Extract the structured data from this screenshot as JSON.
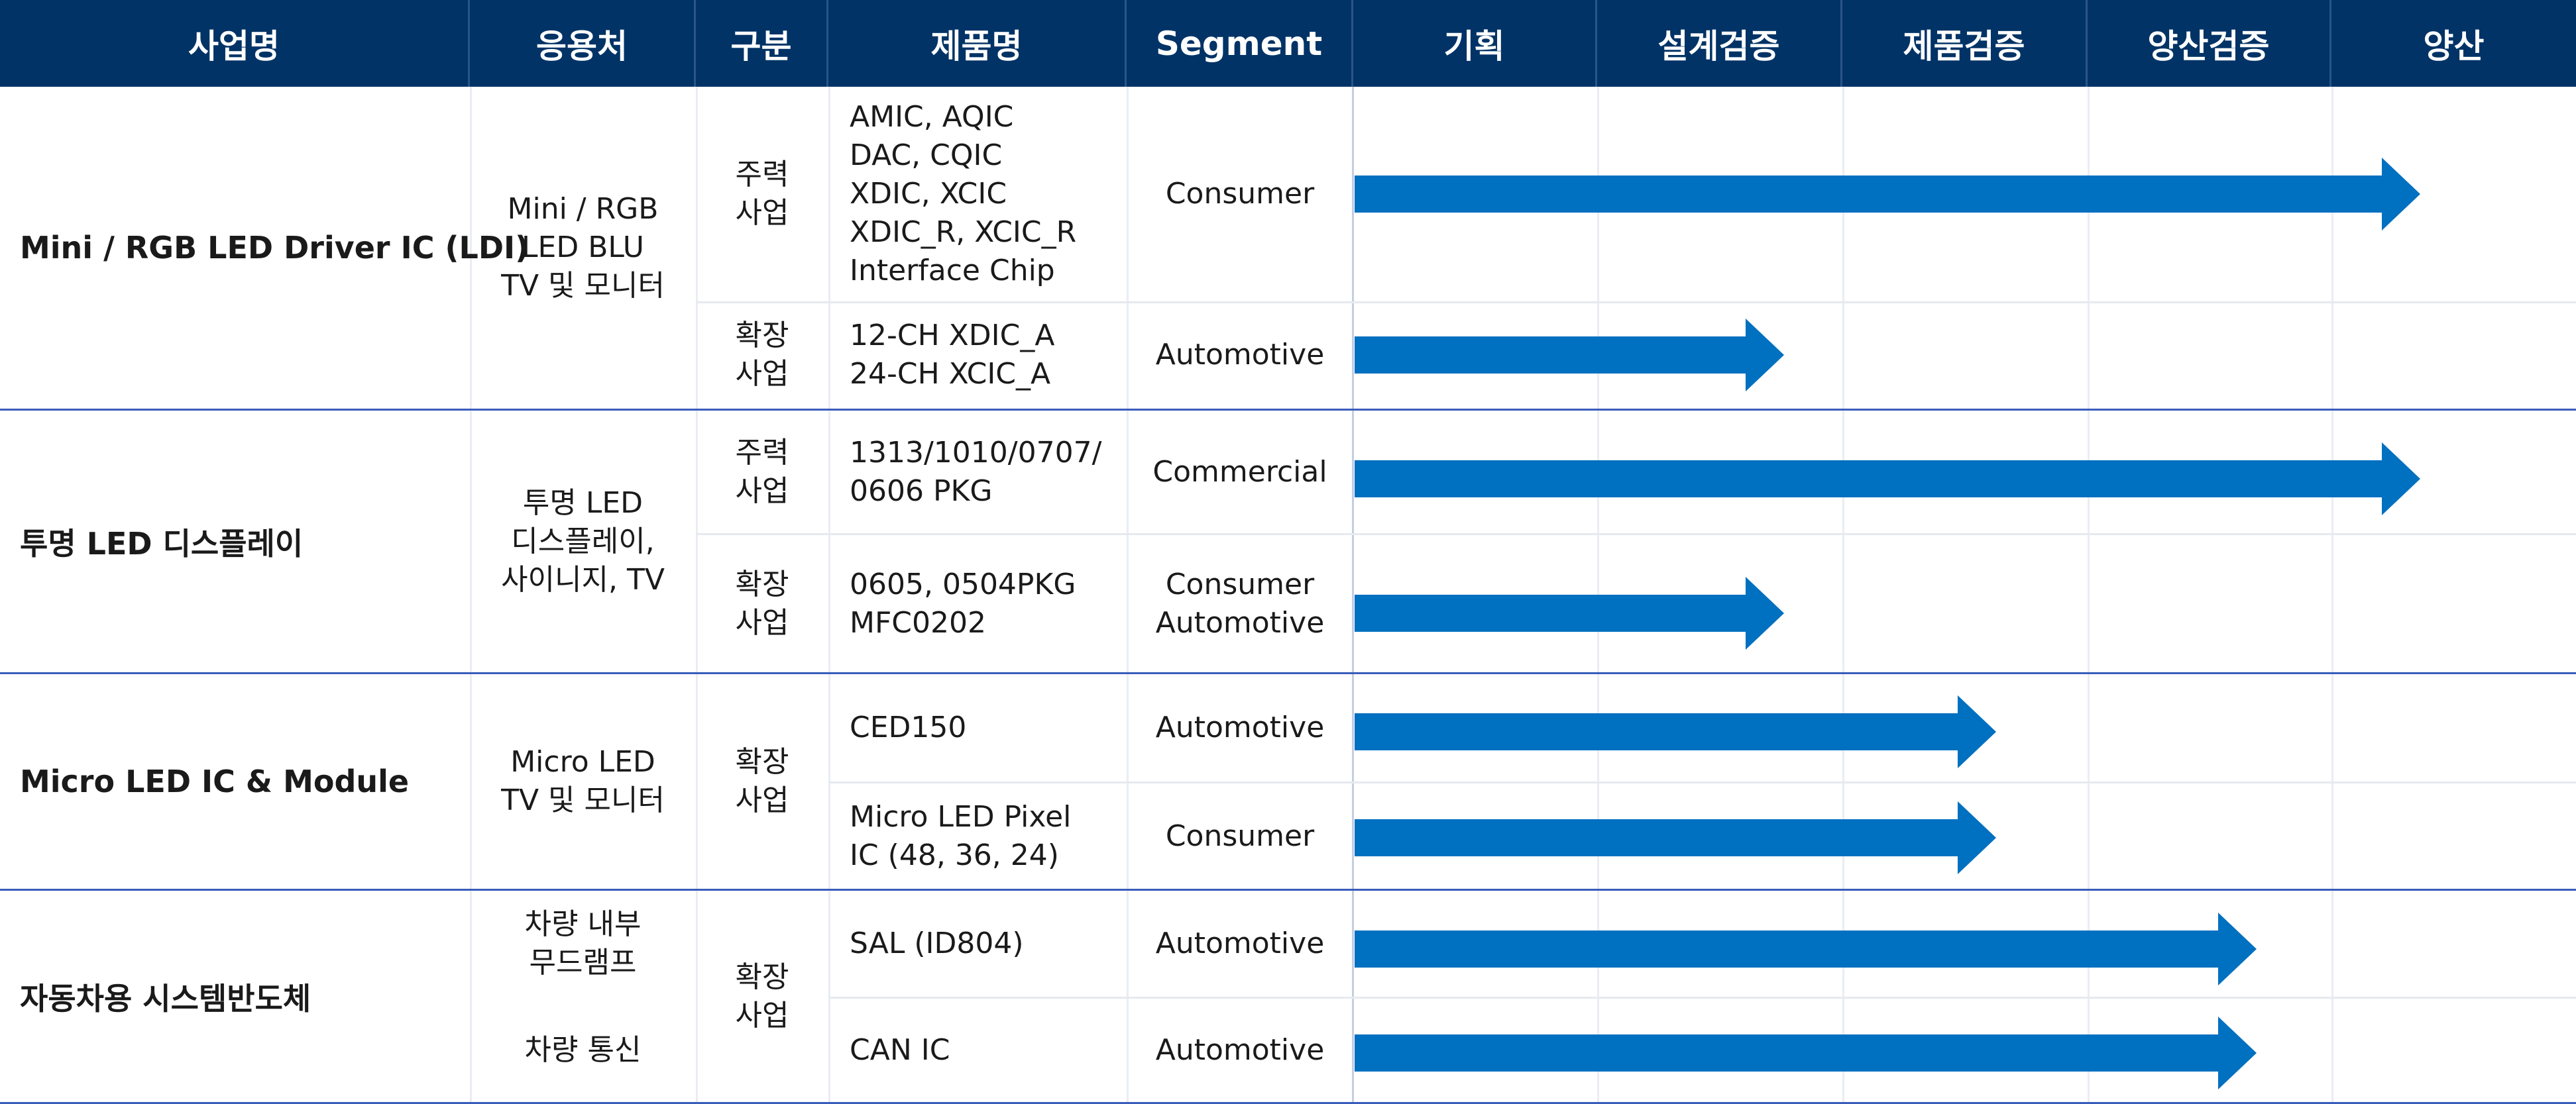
{
  "headers": [
    "사업명",
    "응용처",
    "구분",
    "제품명",
    "Segment",
    "기획",
    "설계검증",
    "제품검증",
    "양산검증",
    "양산"
  ],
  "colors": {
    "header_bg": "#013366",
    "arrow": "#0070C0",
    "group_line": "#3A5DBB"
  },
  "groups": [
    {
      "business": "Mini / RGB LED Driver IC (LDI)",
      "apps": [
        "Mini / RGB\nLED BLU\nTV 및 모니터"
      ],
      "categories": [
        "주력\n사업",
        "확장\n사업"
      ],
      "rows": [
        {
          "product": "AMIC, AQIC\nDAC, CQIC\nXDIC, XCIC\nXDIC_R, XCIC_R\nInterface Chip",
          "segment": "Consumer",
          "stage": "양산"
        },
        {
          "product": "12-CH XDIC_A\n24-CH XCIC_A",
          "segment": "Automotive",
          "stage": "설계검증"
        }
      ]
    },
    {
      "business": "투명 LED 디스플레이",
      "apps": [
        "투명 LED\n디스플레이,\n사이니지, TV"
      ],
      "categories": [
        "주력\n사업",
        "확장\n사업"
      ],
      "rows": [
        {
          "product": "1313/1010/0707/\n0606 PKG",
          "segment": "Commercial",
          "stage": "양산"
        },
        {
          "product": "0605, 0504PKG\nMFC0202",
          "segment": "Consumer\nAutomotive",
          "stage": "설계검증"
        }
      ]
    },
    {
      "business": "Micro LED IC & Module",
      "apps": [
        "Micro LED\nTV 및 모니터"
      ],
      "categories": [
        "확장\n사업"
      ],
      "rows": [
        {
          "product": "CED150",
          "segment": "Automotive",
          "stage": "제품검증"
        },
        {
          "product": "Micro LED Pixel\nIC (48, 36, 24)",
          "segment": "Consumer",
          "stage": "제품검증"
        }
      ]
    },
    {
      "business": "자동차용 시스템반도체",
      "apps": [
        "차량 내부\n무드램프",
        "차량 통신"
      ],
      "categories": [
        "확장\n사업"
      ],
      "rows": [
        {
          "product": "SAL (ID804)",
          "segment": "Automotive",
          "stage": "양산검증"
        },
        {
          "product": "CAN IC",
          "segment": "Automotive",
          "stage": "양산검증"
        }
      ]
    }
  ]
}
